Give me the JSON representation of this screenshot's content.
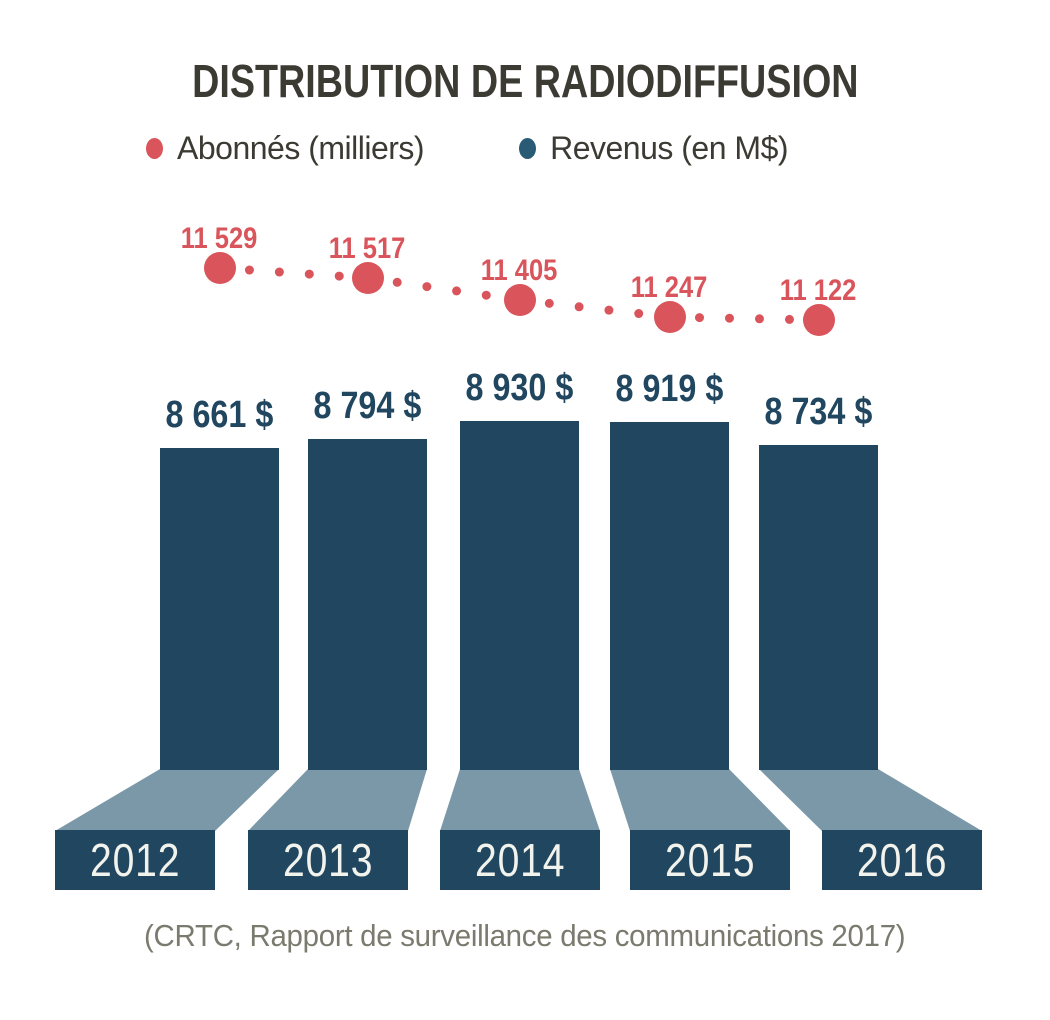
{
  "title": "DISTRIBUTION DE RADIODIFFUSION",
  "legend": [
    {
      "label": "Abonnés (milliers)",
      "color": "#d9545b"
    },
    {
      "label": "Revenus (en M$)",
      "color": "#2a5b75"
    }
  ],
  "source": "(CRTC, Rapport de surveillance des communications 2017)",
  "colors": {
    "subscribers_red": "#d9545b",
    "revenue_navy": "#21465f",
    "pedestal_slate": "#7b98a8",
    "title_text": "#3b3a33",
    "year_text": "#f2f3ec",
    "source_text": "#7b7a6e",
    "background": "#ffffff"
  },
  "chart_data": {
    "type": "bar",
    "subtype": "combo: dotted line (subscribers) above 3D pedestal bars (revenue)",
    "title": "DISTRIBUTION DE RADIODIFFUSION",
    "categories": [
      "2012",
      "2013",
      "2014",
      "2015",
      "2016"
    ],
    "series": [
      {
        "name": "Abonnés (milliers)",
        "type": "line-dotted",
        "color": "#d9545b",
        "values": [
          11529,
          11517,
          11405,
          11247,
          11122
        ],
        "labels": [
          "11 529",
          "11 517",
          "11 405",
          "11 247",
          "11 122"
        ]
      },
      {
        "name": "Revenus (en M$)",
        "type": "bar",
        "color": "#21465f",
        "values": [
          8661,
          8794,
          8930,
          8919,
          8734
        ],
        "labels": [
          "8 661 $",
          "8 794 $",
          "8 930 $",
          "8 919 $",
          "8 734 $"
        ]
      }
    ],
    "xlabel": "",
    "ylabel": "",
    "grid": false,
    "axes_hidden": true,
    "legend_position": "top",
    "annotations": "each bar sits on a perspective pedestal whose front face holds the year label; source cited below chart"
  }
}
